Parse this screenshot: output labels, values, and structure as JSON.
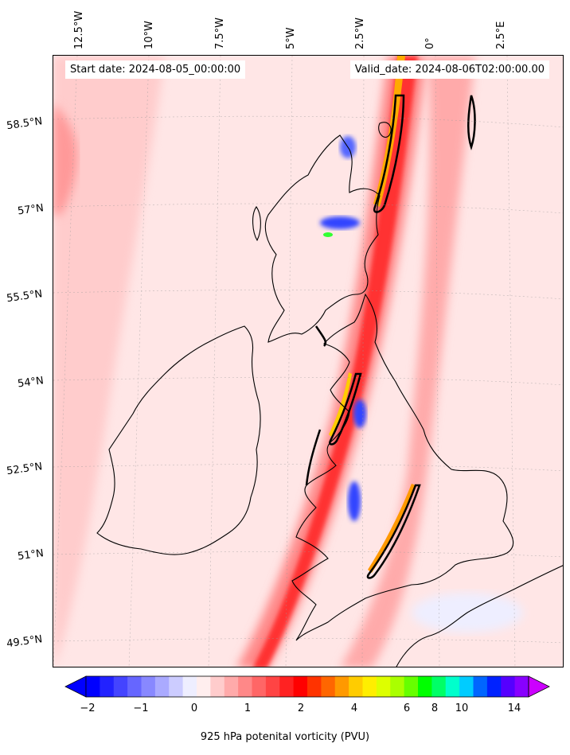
{
  "map": {
    "start_date": "Start date: 2024-08-05_00:00:00",
    "valid_date": "Valid_date: 2024-08-06T02:00:00.00",
    "lon_labels": [
      "12.5°W",
      "10°W",
      "7.5°W",
      "5°W",
      "2.5°W",
      "0°",
      "2.5°E"
    ],
    "lat_labels": [
      "58.5°N",
      "57°N",
      "55.5°N",
      "54°N",
      "52.5°N",
      "51°N",
      "49.5°N"
    ],
    "field": "925 hPa potenital vorticity (PVU)"
  },
  "colorbar": {
    "title": "925 hPa potenital vorticity (PVU)",
    "tick_labels": [
      "−2",
      "−1",
      "0",
      "1",
      "2",
      "4",
      "6",
      "8",
      "10",
      "14"
    ],
    "colors": [
      "#0000ff",
      "#2222ff",
      "#4444ff",
      "#6666ff",
      "#8888ff",
      "#aaaaff",
      "#ccccff",
      "#eeeeff",
      "#ffeeee",
      "#ffcccc",
      "#ffaaaa",
      "#ff8888",
      "#ff6666",
      "#ff4444",
      "#ff2222",
      "#ff0000",
      "#ff3300",
      "#ff6600",
      "#ff9900",
      "#ffcc00",
      "#ffee00",
      "#ddff00",
      "#aaff00",
      "#66ff00",
      "#00ff00",
      "#00ff66",
      "#00ffcc",
      "#00ccff",
      "#0066ff",
      "#0022ff",
      "#5500ff",
      "#8800ff"
    ],
    "under_color": "#0000ff",
    "over_color": "#cc00ff"
  }
}
